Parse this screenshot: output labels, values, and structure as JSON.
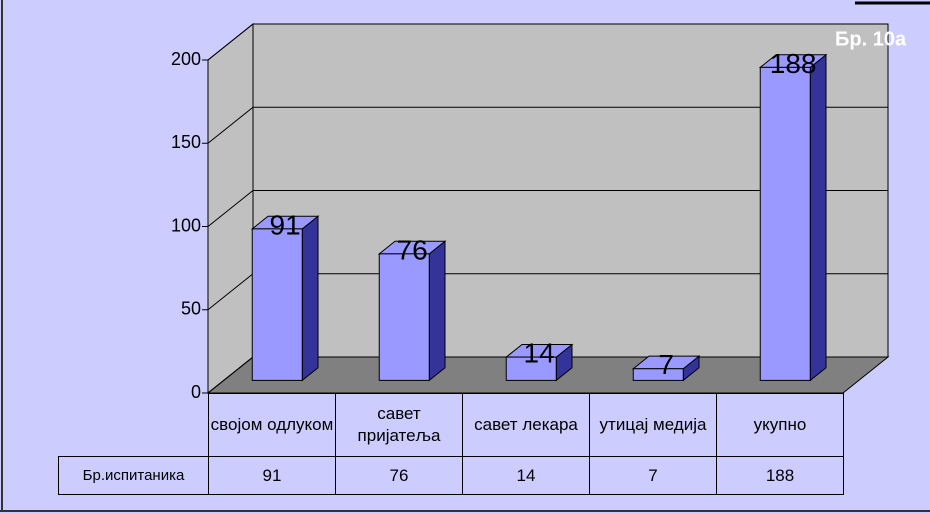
{
  "chart_data": {
    "type": "bar3d",
    "title": "Бр. 10a",
    "categories": [
      "својом одлуком",
      "савет пријатеља",
      "савет лекара",
      "утицај медија",
      "укупно"
    ],
    "series": [
      {
        "name": "Бр.испитаника",
        "color": "#9999ff",
        "values": [
          91,
          76,
          14,
          7,
          188
        ]
      }
    ],
    "ylim": [
      0,
      200
    ],
    "yticks": [
      0,
      50,
      100,
      150,
      200
    ],
    "grid": true
  }
}
